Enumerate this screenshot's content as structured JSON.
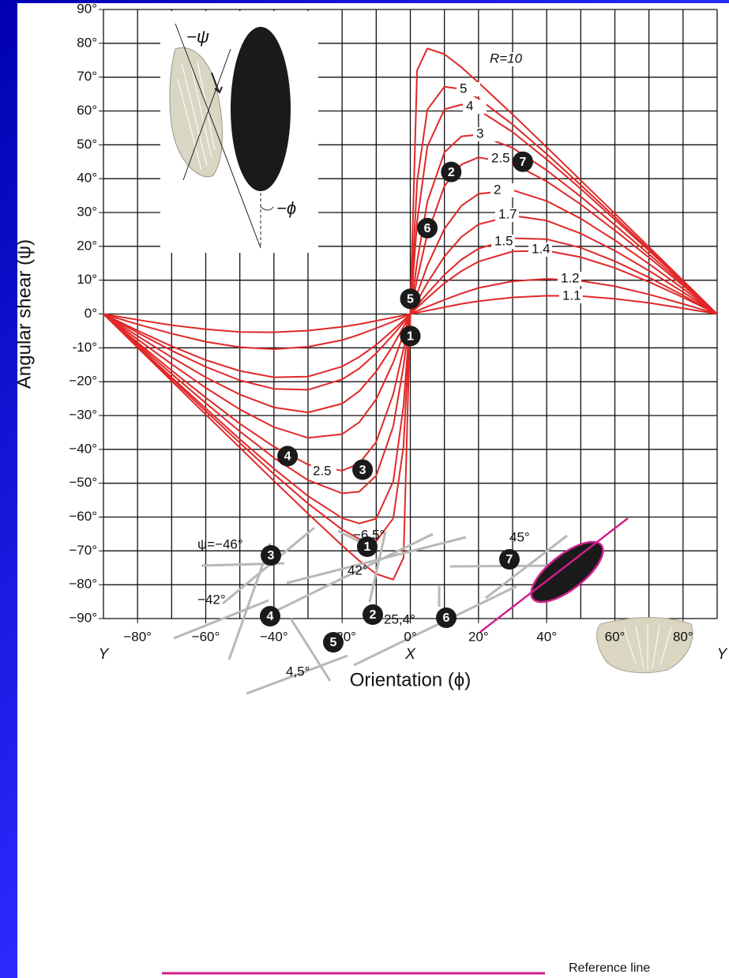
{
  "chart_data": {
    "type": "line",
    "x_label": "Orientation (ϕ)",
    "y_label": "Angular shear (ψ)",
    "axis_end_labels": [
      "Y",
      "X",
      "Y"
    ],
    "xlim": [
      -90,
      90
    ],
    "ylim": [
      -90,
      90
    ],
    "grid": true,
    "xticks": [
      {
        "value": -80,
        "label": "−80°"
      },
      {
        "value": -60,
        "label": "−60°"
      },
      {
        "value": -40,
        "label": "−40°"
      },
      {
        "value": -20,
        "label": "−20°"
      },
      {
        "value": 0,
        "label": "0°"
      },
      {
        "value": 20,
        "label": "20°"
      },
      {
        "value": 40,
        "label": "40°"
      },
      {
        "value": 60,
        "label": "60°"
      },
      {
        "value": 80,
        "label": "80°"
      }
    ],
    "x_minor_ticks": [
      -90,
      -70,
      -50,
      -30,
      -10,
      10,
      30,
      50,
      70,
      90
    ],
    "yticks": [
      {
        "value": 90,
        "label": "90°"
      },
      {
        "value": 80,
        "label": "80°"
      },
      {
        "value": 70,
        "label": "70°"
      },
      {
        "value": 60,
        "label": "60°"
      },
      {
        "value": 50,
        "label": "50°"
      },
      {
        "value": 40,
        "label": "40°"
      },
      {
        "value": 30,
        "label": "30°"
      },
      {
        "value": 20,
        "label": "20°"
      },
      {
        "value": 10,
        "label": "10°"
      },
      {
        "value": 0,
        "label": "0°"
      },
      {
        "value": -10,
        "label": "-10°"
      },
      {
        "value": -20,
        "label": "−20°"
      },
      {
        "value": -30,
        "label": "−30°"
      },
      {
        "value": -40,
        "label": "−40°"
      },
      {
        "value": -50,
        "label": "−50°"
      },
      {
        "value": -60,
        "label": "−60°"
      },
      {
        "value": -70,
        "label": "−70°"
      },
      {
        "value": -80,
        "label": "−80°"
      },
      {
        "value": -90,
        "label": "−90°"
      }
    ],
    "x": [
      -90,
      -80,
      -70,
      -60,
      -50,
      -40,
      -30,
      -20,
      -15,
      -10,
      -5,
      -2,
      0,
      2,
      5,
      10,
      15,
      20,
      30,
      40,
      50,
      60,
      70,
      80,
      90
    ],
    "series": [
      {
        "name": "R=10",
        "color": "#e02828",
        "values": [
          0,
          -9.9,
          -19.8,
          -29.7,
          -39.5,
          -49.3,
          -59.0,
          -68.4,
          -72.9,
          -76.8,
          -78.5,
          -72.0,
          0,
          72.0,
          78.5,
          76.8,
          72.9,
          68.4,
          59.0,
          49.3,
          39.5,
          29.7,
          19.8,
          9.9,
          0
        ]
      },
      {
        "name": "5",
        "color": "#e02828",
        "values": [
          0,
          -9.6,
          -19.2,
          -28.7,
          -38.1,
          -47.3,
          -56.0,
          -63.7,
          -66.5,
          -67.2,
          -60.4,
          -39.1,
          0,
          39.1,
          60.4,
          67.2,
          66.5,
          63.7,
          56.0,
          47.3,
          38.1,
          28.7,
          19.2,
          9.6,
          0
        ]
      },
      {
        "name": "4",
        "color": "#e02828",
        "values": [
          0,
          -9.4,
          -18.7,
          -27.9,
          -37.0,
          -45.7,
          -53.8,
          -60.3,
          -61.9,
          -60.5,
          -49.5,
          -27.2,
          0,
          27.2,
          49.5,
          60.5,
          61.9,
          60.3,
          53.8,
          45.7,
          37.0,
          27.9,
          18.7,
          9.4,
          0
        ]
      },
      {
        "name": "3",
        "color": "#e02828",
        "values": [
          0,
          -8.9,
          -17.7,
          -26.3,
          -34.7,
          -42.5,
          -49.1,
          -53.0,
          -52.5,
          -47.8,
          -33.2,
          -15.4,
          0,
          15.4,
          33.2,
          47.8,
          52.5,
          53.0,
          49.1,
          42.5,
          34.7,
          26.3,
          17.7,
          8.9,
          0
        ]
      },
      {
        "name": "2.5",
        "color": "#e02828",
        "values": [
          0,
          -8.4,
          -16.7,
          -24.7,
          -32.4,
          -39.2,
          -44.5,
          -46.3,
          -44.2,
          -37.8,
          -23.7,
          -10.3,
          0,
          10.3,
          23.7,
          37.8,
          44.2,
          46.3,
          44.5,
          39.2,
          32.4,
          24.7,
          16.7,
          8.4,
          0
        ]
      },
      {
        "name": "2",
        "color": "#e02828",
        "values": [
          0,
          -7.5,
          -14.8,
          -21.8,
          -28.2,
          -33.4,
          -36.6,
          -35.5,
          -32.0,
          -25.2,
          -14.3,
          -6.0,
          0,
          6.0,
          14.3,
          25.2,
          32.0,
          35.5,
          36.6,
          33.4,
          28.2,
          21.8,
          14.8,
          7.5,
          0
        ]
      },
      {
        "name": "1.7",
        "color": "#e02828",
        "values": [
          0,
          -6.5,
          -12.8,
          -18.7,
          -23.8,
          -27.6,
          -29.1,
          -26.5,
          -22.8,
          -17.0,
          -9.2,
          -3.8,
          0,
          3.8,
          9.2,
          17.0,
          22.8,
          26.5,
          29.1,
          27.6,
          23.8,
          18.7,
          12.8,
          6.5,
          0
        ]
      },
      {
        "name": "1.5",
        "color": "#e02828",
        "values": [
          0,
          -5.5,
          -10.8,
          -15.6,
          -19.6,
          -22.1,
          -22.4,
          -19.3,
          -16.1,
          -11.6,
          -6.1,
          -2.5,
          0,
          2.5,
          6.1,
          11.6,
          16.1,
          19.3,
          22.4,
          22.1,
          19.6,
          15.6,
          10.8,
          5.5,
          0
        ]
      },
      {
        "name": "1.4",
        "color": "#e02828",
        "values": [
          0,
          -4.9,
          -9.5,
          -13.6,
          -16.8,
          -18.7,
          -18.5,
          -15.5,
          -12.7,
          -9.1,
          -4.7,
          -1.9,
          0,
          1.9,
          4.7,
          9.1,
          12.7,
          15.5,
          18.5,
          18.7,
          16.8,
          13.6,
          9.5,
          4.9,
          0
        ]
      },
      {
        "name": "1.2",
        "color": "#e02828",
        "values": [
          0,
          -3.0,
          -5.8,
          -8.2,
          -9.8,
          -10.4,
          -9.7,
          -7.7,
          -6.1,
          -4.2,
          -2.2,
          -0.9,
          0,
          0.9,
          2.2,
          4.2,
          6.1,
          7.7,
          9.7,
          10.4,
          9.8,
          8.2,
          5.8,
          3.0,
          0
        ]
      },
      {
        "name": "1.1",
        "color": "#e02828",
        "values": [
          0,
          -1.7,
          -3.3,
          -4.5,
          -5.3,
          -5.4,
          -4.9,
          -3.8,
          -3.0,
          -2.0,
          -1.0,
          -0.4,
          0,
          0.4,
          1.0,
          2.0,
          3.0,
          3.8,
          4.9,
          5.4,
          5.3,
          4.5,
          3.3,
          1.7,
          0
        ]
      }
    ],
    "lower_curve_label": "2.5",
    "markers": [
      {
        "label": "1",
        "x": 0,
        "y": -6.5
      },
      {
        "label": "5",
        "x": 0,
        "y": 4.5
      },
      {
        "label": "6",
        "x": 5,
        "y": 25.4
      },
      {
        "label": "2",
        "x": 12,
        "y": 42
      },
      {
        "label": "7",
        "x": 33,
        "y": 45
      },
      {
        "label": "3",
        "x": -14,
        "y": -46
      },
      {
        "label": "4",
        "x": -36,
        "y": -42
      }
    ]
  },
  "inset": {
    "psi_label": "−ψ",
    "phi_label": "−ϕ"
  },
  "diagram": {
    "markers": [
      "3",
      "1",
      "7",
      "2",
      "4",
      "5",
      "6"
    ],
    "angle_labels": [
      "ψ=−46°",
      "−6,5°",
      "45°",
      "42°",
      "−42°",
      "25,4°",
      "4,5°"
    ],
    "reference_label": "Reference line"
  }
}
